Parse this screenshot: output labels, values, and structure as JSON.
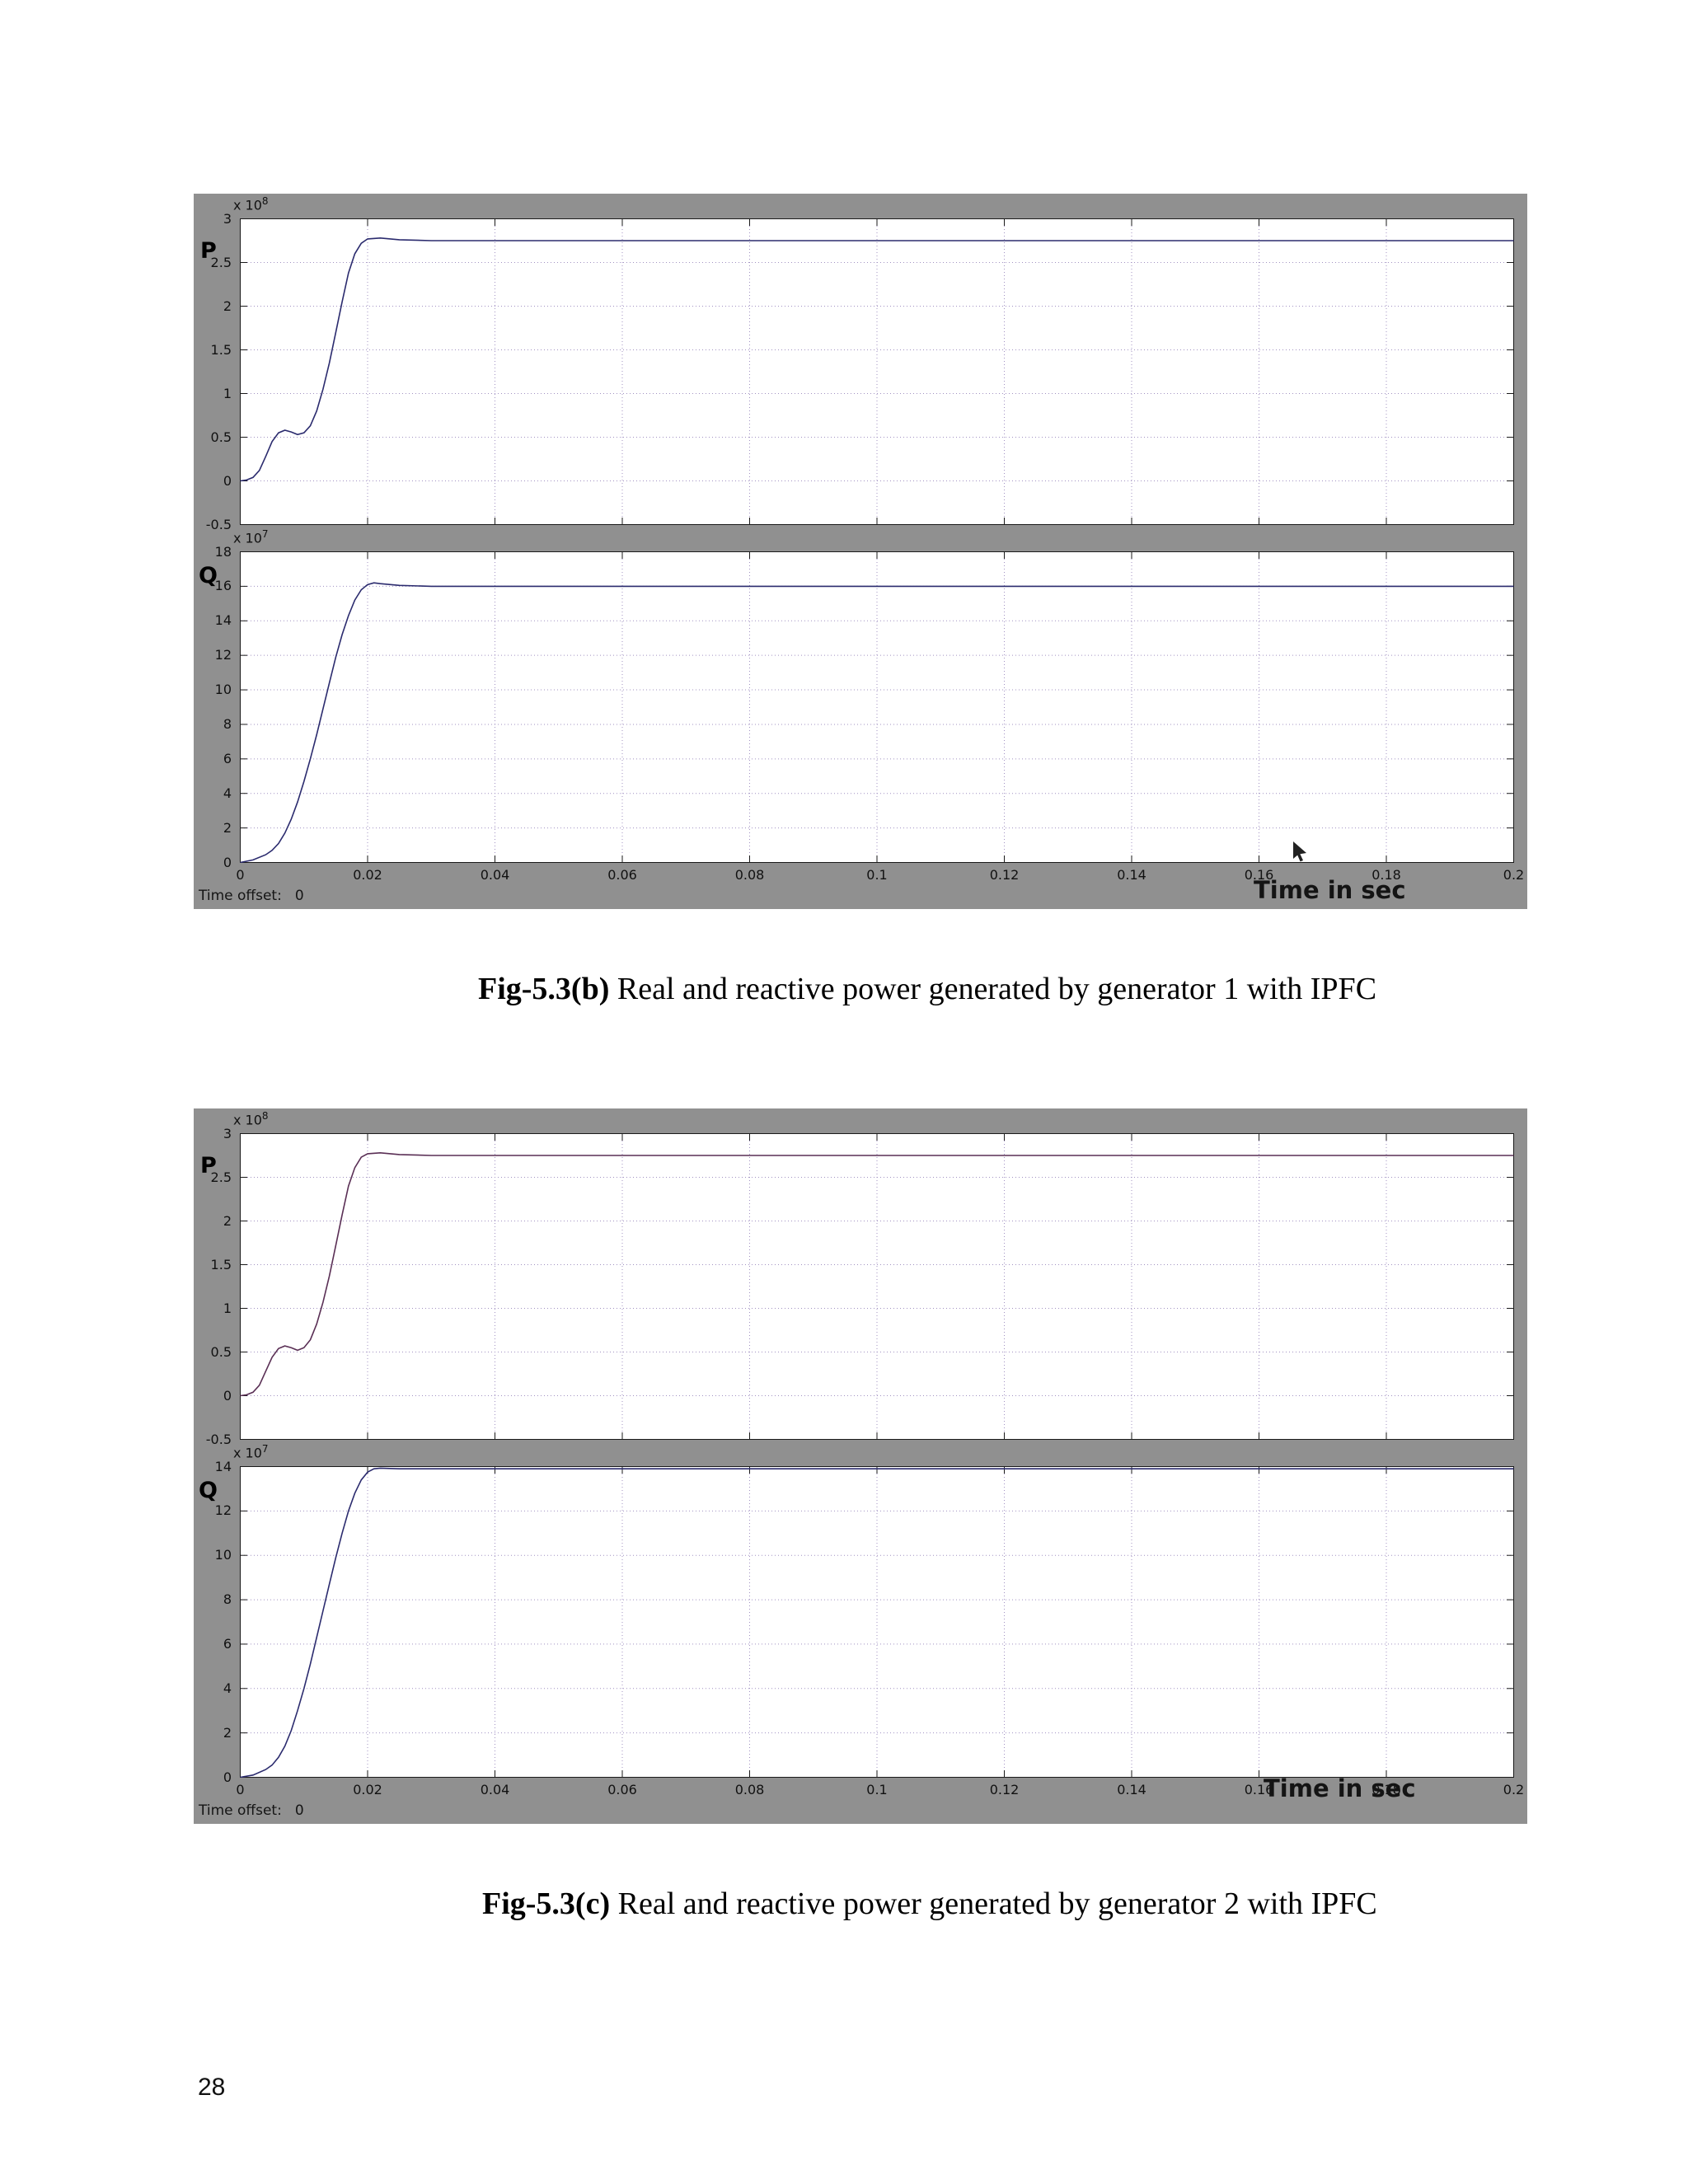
{
  "page": {
    "number": "28"
  },
  "figures": [
    {
      "caption_bold": "Fig-5.3(b)",
      "caption_text": " Real and reactive power generated by generator 1 with IPFC"
    },
    {
      "caption_bold": "Fig-5.3(c)",
      "caption_text": " Real and reactive power generated by generator 2 with IPFC"
    }
  ],
  "chart_data": [
    {
      "type": "line",
      "title": "Fig-5.3(b) Real and reactive power generated by generator 1 with IPFC",
      "xlabel": "Time in sec",
      "time_offset_label": "Time offset:",
      "time_offset_value": "0",
      "grid": true,
      "xlim": [
        0,
        0.2
      ],
      "x_ticks": [
        0,
        0.02,
        0.04,
        0.06,
        0.08,
        0.1,
        0.12,
        0.14,
        0.16,
        0.18,
        0.2
      ],
      "x_tick_labels": [
        "0",
        "0.02",
        "0.04",
        "0.06",
        "0.08",
        "0.1",
        "0.12",
        "0.14",
        "0.16",
        "0.18",
        "0.2"
      ],
      "subplots": [
        {
          "name": "P",
          "exp_base": "x 10",
          "exp": "8",
          "ylim": [
            -0.5,
            3
          ],
          "y_ticks": [
            3,
            2.5,
            2,
            1.5,
            1,
            0.5,
            0,
            -0.5
          ],
          "y_tick_labels": [
            "3",
            "2.5",
            "2",
            "1.5",
            "1",
            "0.5",
            "0",
            "-0.5"
          ],
          "line_color": "#2b2b6e",
          "x": [
            0,
            0.001,
            0.002,
            0.003,
            0.004,
            0.005,
            0.006,
            0.007,
            0.008,
            0.009,
            0.01,
            0.011,
            0.012,
            0.013,
            0.014,
            0.015,
            0.016,
            0.017,
            0.018,
            0.019,
            0.02,
            0.022,
            0.025,
            0.03,
            0.04,
            0.06,
            0.08,
            0.1,
            0.12,
            0.14,
            0.16,
            0.18,
            0.2
          ],
          "y": [
            0,
            0.01,
            0.04,
            0.12,
            0.28,
            0.45,
            0.55,
            0.58,
            0.56,
            0.53,
            0.55,
            0.63,
            0.8,
            1.05,
            1.35,
            1.7,
            2.05,
            2.38,
            2.6,
            2.72,
            2.77,
            2.78,
            2.76,
            2.75,
            2.75,
            2.75,
            2.75,
            2.75,
            2.75,
            2.75,
            2.75,
            2.75,
            2.75
          ]
        },
        {
          "name": "Q",
          "exp_base": "x 10",
          "exp": "7",
          "ylim": [
            0,
            18
          ],
          "y_ticks": [
            18,
            16,
            14,
            12,
            10,
            8,
            6,
            4,
            2,
            0
          ],
          "y_tick_labels": [
            "18",
            "16",
            "14",
            "12",
            "10",
            "8",
            "6",
            "4",
            "2",
            "0"
          ],
          "line_color": "#2b2b6e",
          "x": [
            0,
            0.002,
            0.004,
            0.005,
            0.006,
            0.007,
            0.008,
            0.009,
            0.01,
            0.011,
            0.012,
            0.013,
            0.014,
            0.015,
            0.016,
            0.017,
            0.018,
            0.019,
            0.02,
            0.021,
            0.022,
            0.025,
            0.03,
            0.05,
            0.1,
            0.15,
            0.2
          ],
          "y": [
            0,
            0.15,
            0.45,
            0.7,
            1.1,
            1.7,
            2.5,
            3.5,
            4.7,
            6.0,
            7.4,
            8.9,
            10.4,
            11.9,
            13.2,
            14.3,
            15.2,
            15.8,
            16.1,
            16.2,
            16.15,
            16.05,
            16.0,
            16.0,
            16.0,
            16.0,
            16.0
          ]
        }
      ]
    },
    {
      "type": "line",
      "title": "Fig-5.3(c) Real and reactive power generated by generator 2 with IPFC",
      "xlabel": "Time in sec",
      "time_offset_label": "Time offset:",
      "time_offset_value": "0",
      "grid": true,
      "xlim": [
        0,
        0.2
      ],
      "x_ticks": [
        0,
        0.02,
        0.04,
        0.06,
        0.08,
        0.1,
        0.12,
        0.14,
        0.16,
        0.18,
        0.2
      ],
      "x_tick_labels": [
        "0",
        "0.02",
        "0.04",
        "0.06",
        "0.08",
        "0.1",
        "0.12",
        "0.14",
        "0.16",
        "0.18",
        "0.2"
      ],
      "subplots": [
        {
          "name": "P",
          "exp_base": "x 10",
          "exp": "8",
          "ylim": [
            -0.5,
            3
          ],
          "y_ticks": [
            3,
            2.5,
            2,
            1.5,
            1,
            0.5,
            0,
            -0.5
          ],
          "y_tick_labels": [
            "3",
            "2.5",
            "2",
            "1.5",
            "1",
            "0.5",
            "0",
            "-0.5"
          ],
          "line_color": "#5a2f55",
          "x": [
            0,
            0.001,
            0.002,
            0.003,
            0.004,
            0.005,
            0.006,
            0.007,
            0.008,
            0.009,
            0.01,
            0.011,
            0.012,
            0.013,
            0.014,
            0.015,
            0.016,
            0.017,
            0.018,
            0.019,
            0.02,
            0.022,
            0.025,
            0.03,
            0.04,
            0.06,
            0.08,
            0.1,
            0.12,
            0.14,
            0.16,
            0.18,
            0.2
          ],
          "y": [
            0,
            0.01,
            0.04,
            0.12,
            0.28,
            0.44,
            0.54,
            0.57,
            0.55,
            0.52,
            0.55,
            0.64,
            0.82,
            1.07,
            1.37,
            1.72,
            2.07,
            2.4,
            2.61,
            2.73,
            2.77,
            2.78,
            2.76,
            2.75,
            2.75,
            2.75,
            2.75,
            2.75,
            2.75,
            2.75,
            2.75,
            2.75,
            2.75
          ]
        },
        {
          "name": "Q",
          "exp_base": "x 10",
          "exp": "7",
          "ylim": [
            0,
            14
          ],
          "y_ticks": [
            14,
            12,
            10,
            8,
            6,
            4,
            2,
            0
          ],
          "y_tick_labels": [
            "14",
            "12",
            "10",
            "8",
            "6",
            "4",
            "2",
            "0"
          ],
          "line_color": "#2b2b6e",
          "x": [
            0,
            0.002,
            0.004,
            0.005,
            0.006,
            0.007,
            0.008,
            0.009,
            0.01,
            0.011,
            0.012,
            0.013,
            0.014,
            0.015,
            0.016,
            0.017,
            0.018,
            0.019,
            0.02,
            0.021,
            0.022,
            0.025,
            0.03,
            0.05,
            0.1,
            0.15,
            0.2
          ],
          "y": [
            0,
            0.1,
            0.35,
            0.55,
            0.9,
            1.4,
            2.1,
            3.0,
            4.0,
            5.1,
            6.3,
            7.5,
            8.7,
            9.9,
            11.0,
            12.0,
            12.8,
            13.4,
            13.75,
            13.9,
            13.93,
            13.9,
            13.9,
            13.9,
            13.9,
            13.9,
            13.9
          ]
        }
      ]
    }
  ]
}
